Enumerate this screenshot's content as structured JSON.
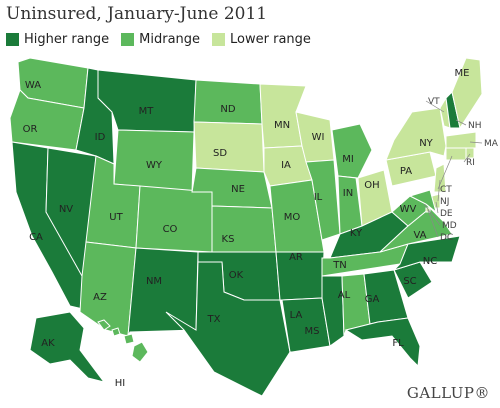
{
  "title": "Uninsured, January-June 2011",
  "legend": [
    {
      "key": "high",
      "label": "Higher range",
      "color": "#1b7b3a"
    },
    {
      "key": "mid",
      "label": "Midrange",
      "color": "#5cb85c"
    },
    {
      "key": "low",
      "label": "Lower range",
      "color": "#c7e59b"
    }
  ],
  "brand": "GALLUP®",
  "states": [
    {
      "abbr": "WA",
      "range": "mid"
    },
    {
      "abbr": "OR",
      "range": "mid"
    },
    {
      "abbr": "CA",
      "range": "high"
    },
    {
      "abbr": "NV",
      "range": "high"
    },
    {
      "abbr": "ID",
      "range": "high"
    },
    {
      "abbr": "MT",
      "range": "high"
    },
    {
      "abbr": "WY",
      "range": "mid"
    },
    {
      "abbr": "UT",
      "range": "mid"
    },
    {
      "abbr": "AZ",
      "range": "mid"
    },
    {
      "abbr": "CO",
      "range": "mid"
    },
    {
      "abbr": "NM",
      "range": "high"
    },
    {
      "abbr": "ND",
      "range": "mid"
    },
    {
      "abbr": "SD",
      "range": "low"
    },
    {
      "abbr": "NE",
      "range": "mid"
    },
    {
      "abbr": "KS",
      "range": "mid"
    },
    {
      "abbr": "OK",
      "range": "high"
    },
    {
      "abbr": "TX",
      "range": "high"
    },
    {
      "abbr": "MN",
      "range": "low"
    },
    {
      "abbr": "IA",
      "range": "low"
    },
    {
      "abbr": "MO",
      "range": "mid"
    },
    {
      "abbr": "AR",
      "range": "high"
    },
    {
      "abbr": "LA",
      "range": "high"
    },
    {
      "abbr": "WI",
      "range": "low"
    },
    {
      "abbr": "IL",
      "range": "mid"
    },
    {
      "abbr": "MI",
      "range": "mid"
    },
    {
      "abbr": "IN",
      "range": "mid"
    },
    {
      "abbr": "OH",
      "range": "low"
    },
    {
      "abbr": "KY",
      "range": "high"
    },
    {
      "abbr": "TN",
      "range": "mid"
    },
    {
      "abbr": "MS",
      "range": "high"
    },
    {
      "abbr": "AL",
      "range": "mid"
    },
    {
      "abbr": "GA",
      "range": "high"
    },
    {
      "abbr": "FL",
      "range": "high"
    },
    {
      "abbr": "SC",
      "range": "high"
    },
    {
      "abbr": "NC",
      "range": "high"
    },
    {
      "abbr": "VA",
      "range": "mid"
    },
    {
      "abbr": "WV",
      "range": "mid"
    },
    {
      "abbr": "PA",
      "range": "low"
    },
    {
      "abbr": "NY",
      "range": "low"
    },
    {
      "abbr": "VT",
      "range": "low"
    },
    {
      "abbr": "NH",
      "range": "high"
    },
    {
      "abbr": "ME",
      "range": "low"
    },
    {
      "abbr": "MA",
      "range": "low"
    },
    {
      "abbr": "RI",
      "range": "low"
    },
    {
      "abbr": "CT",
      "range": "low"
    },
    {
      "abbr": "NJ",
      "range": "low"
    },
    {
      "abbr": "DE",
      "range": "low"
    },
    {
      "abbr": "MD",
      "range": "mid"
    },
    {
      "abbr": "DC",
      "range": "low"
    },
    {
      "abbr": "AK",
      "range": "high"
    },
    {
      "abbr": "HI",
      "range": "mid"
    }
  ]
}
